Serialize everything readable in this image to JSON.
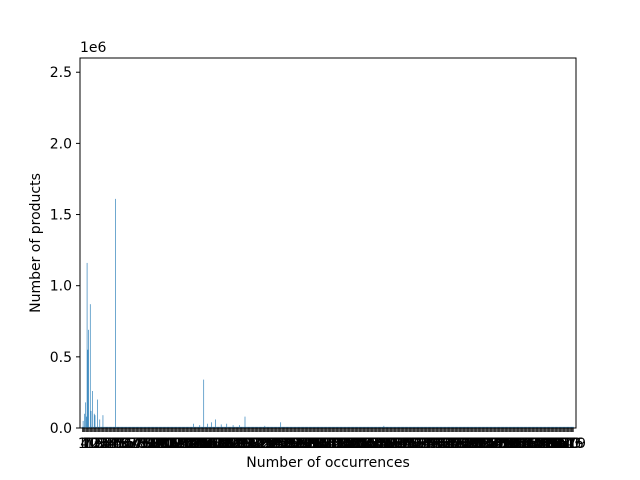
{
  "chart_data": {
    "type": "bar",
    "xlabel": "Number of occurrences",
    "ylabel": "Number of products",
    "y_offset_text": "1e6",
    "ylim": [
      0,
      2600000
    ],
    "yticks": [
      {
        "value": 0,
        "label": "0.0"
      },
      {
        "value": 500000,
        "label": "0.5"
      },
      {
        "value": 1000000,
        "label": "1.0"
      },
      {
        "value": 1500000,
        "label": "1.5"
      },
      {
        "value": 2000000,
        "label": "2.0"
      },
      {
        "value": 2500000,
        "label": "2.5"
      }
    ],
    "x_tick_labels_note": "x tick labels are too dense to be legible (overlapping)",
    "bar_color": "#1f77b4",
    "num_categories": 620,
    "bars": [
      {
        "index": 1,
        "value": 50000
      },
      {
        "index": 3,
        "value": 100000
      },
      {
        "index": 4,
        "value": 180000
      },
      {
        "index": 5,
        "value": 80000
      },
      {
        "index": 6,
        "value": 1160000
      },
      {
        "index": 7,
        "value": 550000
      },
      {
        "index": 8,
        "value": 690000
      },
      {
        "index": 10,
        "value": 870000
      },
      {
        "index": 11,
        "value": 120000
      },
      {
        "index": 13,
        "value": 260000
      },
      {
        "index": 15,
        "value": 100000
      },
      {
        "index": 16,
        "value": 90000
      },
      {
        "index": 19,
        "value": 200000
      },
      {
        "index": 22,
        "value": 60000
      },
      {
        "index": 26,
        "value": 90000
      },
      {
        "index": 42,
        "value": 1610000
      },
      {
        "index": 140,
        "value": 30000
      },
      {
        "index": 148,
        "value": 20000
      },
      {
        "index": 153,
        "value": 340000
      },
      {
        "index": 158,
        "value": 30000
      },
      {
        "index": 163,
        "value": 40000
      },
      {
        "index": 168,
        "value": 60000
      },
      {
        "index": 175,
        "value": 25000
      },
      {
        "index": 182,
        "value": 30000
      },
      {
        "index": 190,
        "value": 20000
      },
      {
        "index": 198,
        "value": 20000
      },
      {
        "index": 205,
        "value": 80000
      },
      {
        "index": 230,
        "value": 15000
      },
      {
        "index": 250,
        "value": 40000
      },
      {
        "index": 380,
        "value": 15000
      }
    ],
    "baseline_value": 8000
  }
}
